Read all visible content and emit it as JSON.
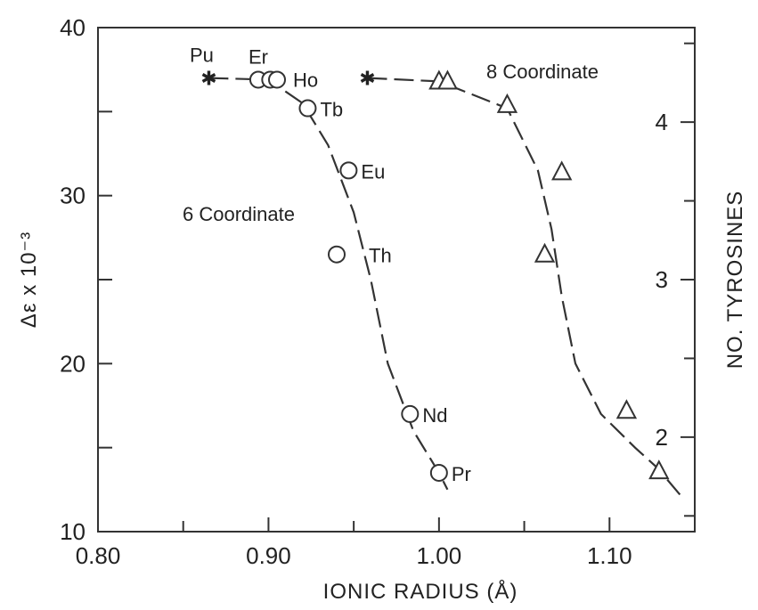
{
  "chart_data": {
    "type": "scatter",
    "title": "",
    "xlabel": "IONIC RADIUS (Å)",
    "ylabel": "Δε x 10⁻³",
    "y2label": "NO. TYROSINES",
    "xlim": [
      0.8,
      1.15
    ],
    "ylim": [
      10,
      40
    ],
    "y2lim_display": [
      1.4,
      4.6
    ],
    "x_ticks": [
      0.8,
      0.9,
      1.0,
      1.1
    ],
    "x_tick_labels": [
      "0.80",
      "0.90",
      "1.00",
      "1.10"
    ],
    "y_ticks": [
      10,
      20,
      30,
      40
    ],
    "y_tick_labels": [
      "10",
      "20",
      "30",
      "40"
    ],
    "y2_ticks": [
      2,
      3,
      4
    ],
    "y2_tick_labels": [
      "2",
      "3",
      "4"
    ],
    "grid": false,
    "series": [
      {
        "marker": "circle",
        "points": [
          {
            "x": 0.894,
            "y": 36.9,
            "label": "Er"
          },
          {
            "x": 0.901,
            "y": 36.9,
            "label": ""
          },
          {
            "x": 0.905,
            "y": 36.9,
            "label": "Ho"
          },
          {
            "x": 0.923,
            "y": 35.2,
            "label": "Tb"
          },
          {
            "x": 0.947,
            "y": 31.5,
            "label": "Eu"
          },
          {
            "x": 0.94,
            "y": 26.5,
            "label": "Th"
          },
          {
            "x": 0.983,
            "y": 17.0,
            "label": "Nd"
          },
          {
            "x": 1.0,
            "y": 13.5,
            "label": "Pr"
          }
        ],
        "curve": [
          [
            0.865,
            37.0
          ],
          [
            0.9,
            36.9
          ],
          [
            0.92,
            35.5
          ],
          [
            0.935,
            33.0
          ],
          [
            0.95,
            29.0
          ],
          [
            0.96,
            25.0
          ],
          [
            0.97,
            20.0
          ],
          [
            0.985,
            16.0
          ],
          [
            1.0,
            13.5
          ],
          [
            1.005,
            12.5
          ]
        ]
      },
      {
        "marker": "triangle",
        "points": [
          {
            "x": 1.0,
            "y": 36.8
          },
          {
            "x": 1.005,
            "y": 36.8
          },
          {
            "x": 1.04,
            "y": 35.4
          },
          {
            "x": 1.072,
            "y": 31.4
          },
          {
            "x": 1.062,
            "y": 26.5
          },
          {
            "x": 1.11,
            "y": 17.2
          },
          {
            "x": 1.129,
            "y": 13.6
          }
        ],
        "curve": [
          [
            0.958,
            37.0
          ],
          [
            1.0,
            36.8
          ],
          [
            1.04,
            35.2
          ],
          [
            1.058,
            31.5
          ],
          [
            1.066,
            28.0
          ],
          [
            1.072,
            24.0
          ],
          [
            1.08,
            20.0
          ],
          [
            1.095,
            17.0
          ],
          [
            1.115,
            15.0
          ],
          [
            1.128,
            13.8
          ],
          [
            1.143,
            12.0
          ]
        ]
      },
      {
        "marker": "star",
        "points": [
          {
            "x": 0.865,
            "y": 37.0,
            "label": "Pu"
          },
          {
            "x": 0.958,
            "y": 37.0,
            "label": ""
          }
        ]
      }
    ],
    "annotations": [
      "6 Coordinate",
      "8 Coordinate"
    ]
  }
}
